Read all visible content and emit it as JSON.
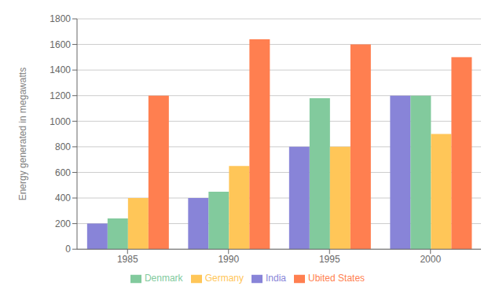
{
  "chart_data": {
    "type": "bar",
    "categories": [
      "1985",
      "1990",
      "1995",
      "2000"
    ],
    "series": [
      {
        "name": "India",
        "values": [
          200,
          400,
          800,
          1200
        ]
      },
      {
        "name": "Denmark",
        "values": [
          240,
          450,
          1180,
          1200
        ]
      },
      {
        "name": "Germany",
        "values": [
          400,
          650,
          800,
          900
        ]
      },
      {
        "name": "Ubited States",
        "values": [
          1200,
          1640,
          1600,
          1500
        ]
      }
    ],
    "ylabel": "Energy generated in megawatts",
    "ylim": [
      0,
      1800
    ],
    "yticks": [
      0,
      200,
      400,
      600,
      800,
      1000,
      1200,
      1400,
      1600,
      1800
    ],
    "grid": true,
    "legend": "bottom"
  }
}
